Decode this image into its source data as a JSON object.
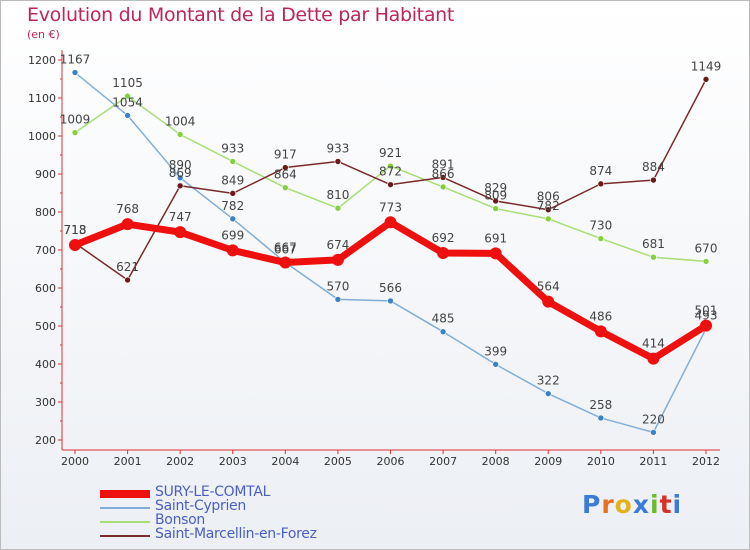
{
  "header": {
    "title": "Evolution du Montant de la Dette par Habitant",
    "unit": "(en €)"
  },
  "logo": {
    "text": "Proxiti",
    "colors": [
      "#3a7bd5",
      "#e8711d",
      "#e3b21b",
      "#3a7bd5",
      "#6aba2e",
      "#d93025",
      "#3a7bd5"
    ]
  },
  "chart_data": {
    "type": "line",
    "x": [
      "2000",
      "2001",
      "2002",
      "2003",
      "2004",
      "2005",
      "2006",
      "2007",
      "2008",
      "2009",
      "2010",
      "2011",
      "2012"
    ],
    "ylim": [
      200,
      1200
    ],
    "yticks": [
      200,
      300,
      400,
      500,
      600,
      700,
      800,
      900,
      1000,
      1100,
      1200
    ],
    "grid": false,
    "legend_position": "bottom-left",
    "series": [
      {
        "name": "SURY-LE-COMTAL",
        "color": "#ee0f0f",
        "marker": "#ee0f0f",
        "width": 7,
        "values": [
          713,
          768,
          747,
          699,
          667,
          674,
          773,
          692,
          691,
          564,
          486,
          414,
          501
        ]
      },
      {
        "name": "Saint-Cyprien",
        "color": "#80aed6",
        "marker": "#3b82c4",
        "width": 1.5,
        "values": [
          1167,
          1054,
          890,
          782,
          667,
          570,
          566,
          485,
          399,
          322,
          258,
          220,
          493
        ]
      },
      {
        "name": "Bonson",
        "color": "#a6df78",
        "marker": "#86d040",
        "width": 1.5,
        "values": [
          1009,
          1105,
          1004,
          933,
          864,
          810,
          921,
          866,
          809,
          782,
          730,
          681,
          670
        ]
      },
      {
        "name": "Saint-Marcellin-en-Forez",
        "color": "#7a2a2a",
        "marker": "#6b1a1a",
        "width": 1.5,
        "values": [
          718,
          621,
          869,
          849,
          917,
          933,
          872,
          891,
          829,
          806,
          874,
          884,
          1149
        ]
      }
    ]
  }
}
